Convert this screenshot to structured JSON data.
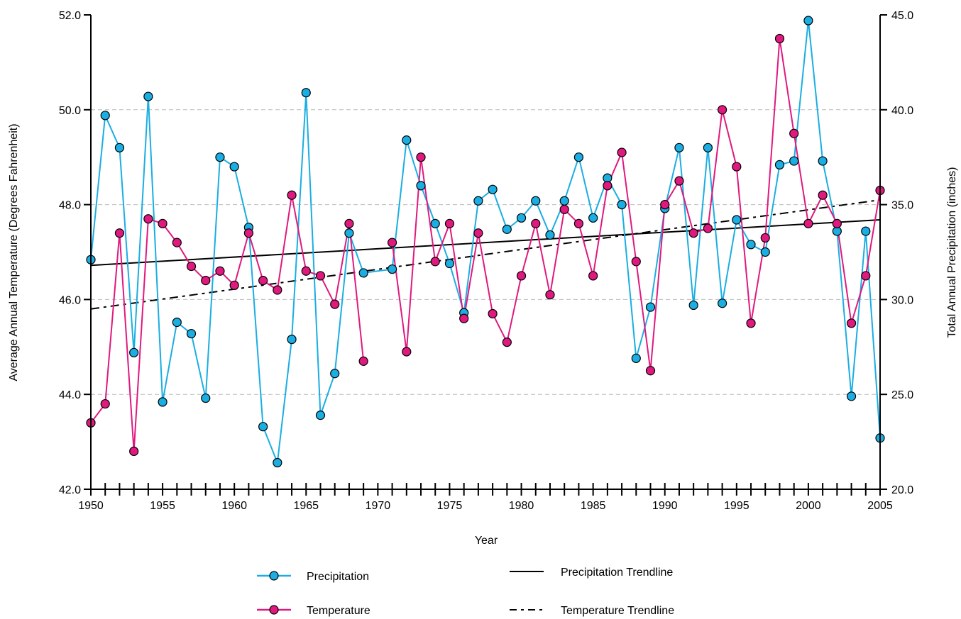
{
  "chart_data": {
    "type": "line",
    "xlabel": "Year",
    "y_left_label": "Average Annual Temperature (Degrees Fahrenheit)",
    "y_right_label": "Total Annual Precipitation (inches)",
    "xlim": [
      1950,
      2005
    ],
    "y_left_lim": [
      42.0,
      52.0
    ],
    "y_right_lim": [
      20.0,
      45.0
    ],
    "x_ticks": [
      1950,
      1955,
      1960,
      1965,
      1970,
      1975,
      1980,
      1985,
      1990,
      1995,
      2000,
      2005
    ],
    "x_tick_labels": [
      "1950",
      "1955",
      "1960",
      "1965",
      "1970",
      "1975",
      "1980",
      "1985",
      "1990",
      "1995",
      "2000",
      "2005"
    ],
    "y_left_ticks": [
      42,
      44,
      46,
      48,
      50,
      52
    ],
    "y_left_tick_labels": [
      "42.0",
      "44.0",
      "46.0",
      "48.0",
      "50.0",
      "52.0"
    ],
    "y_right_ticks": [
      20,
      25,
      30,
      35,
      40,
      45
    ],
    "y_right_tick_labels": [
      "20.0",
      "25.0",
      "30.0",
      "35.0",
      "40.0",
      "45.0"
    ],
    "grid": "horizontal dashed",
    "legend_position": "bottom",
    "colors": {
      "precipitation": "#1aaee2",
      "temperature": "#e0197f",
      "trend": "#000000",
      "grid": "#bbbbbb"
    },
    "series": [
      {
        "name": "Precipitation",
        "axis": "right",
        "x": [
          1950,
          1951,
          1952,
          1953,
          1954,
          1955,
          1956,
          1957,
          1958,
          1959,
          1960,
          1961,
          1962,
          1963,
          1964,
          1965,
          1966,
          1967,
          1968,
          1969,
          1971,
          1972,
          1973,
          1974,
          1975,
          1976,
          1977,
          1978,
          1979,
          1980,
          1981,
          1982,
          1983,
          1984,
          1985,
          1986,
          1987,
          1988,
          1989,
          1990,
          1991,
          1992,
          1993,
          1994,
          1995,
          1996,
          1997,
          1998,
          1999,
          2000,
          2001,
          2002,
          2003,
          2004,
          2005
        ],
        "values": [
          32.1,
          39.7,
          38.0,
          27.2,
          40.7,
          24.6,
          28.8,
          28.2,
          24.8,
          37.5,
          37.0,
          33.8,
          23.3,
          21.4,
          27.9,
          40.9,
          23.9,
          26.1,
          33.5,
          31.4,
          31.6,
          38.4,
          36.0,
          34.0,
          31.9,
          29.3,
          35.2,
          35.8,
          33.7,
          34.3,
          35.2,
          33.4,
          35.2,
          37.5,
          34.3,
          36.4,
          35.0,
          26.9,
          29.6,
          34.8,
          38.0,
          29.7,
          38.0,
          29.8,
          34.2,
          32.9,
          32.5,
          37.1,
          37.3,
          44.7,
          37.3,
          33.6,
          24.9,
          33.6,
          22.7
        ]
      },
      {
        "name": "Temperature",
        "axis": "left",
        "segments": [
          {
            "x": [
              1950,
              1951,
              1952,
              1953,
              1954,
              1955,
              1956,
              1957,
              1958,
              1959,
              1960,
              1961,
              1962,
              1963,
              1964,
              1965,
              1966,
              1967,
              1968,
              1969
            ],
            "values": [
              43.4,
              43.8,
              47.4,
              42.8,
              47.7,
              47.6,
              47.2,
              46.7,
              46.4,
              46.6,
              46.3,
              47.4,
              46.4,
              46.2,
              48.2,
              46.6,
              46.5,
              45.9,
              47.6,
              44.7
            ]
          },
          {
            "x": [
              1971,
              1972,
              1973,
              1974,
              1975,
              1976,
              1977,
              1978,
              1979,
              1980,
              1981,
              1982,
              1983,
              1984,
              1985,
              1986,
              1987,
              1988,
              1989,
              1990,
              1991,
              1992,
              1993,
              1994,
              1995,
              1996,
              1997,
              1998,
              1999,
              2000,
              2001,
              2002,
              2003,
              2004,
              2005
            ],
            "values": [
              47.2,
              44.9,
              49.0,
              46.8,
              47.6,
              45.6,
              47.4,
              45.7,
              45.1,
              46.5,
              47.6,
              46.1,
              47.9,
              47.6,
              46.5,
              48.4,
              49.1,
              46.8,
              44.5,
              48.0,
              48.5,
              47.4,
              47.5,
              50.0,
              48.8,
              45.5,
              47.3,
              51.5,
              49.5,
              47.6,
              48.2,
              47.6,
              45.5,
              46.5,
              48.3
            ]
          }
        ]
      },
      {
        "name": "Precipitation Trendline",
        "axis": "right",
        "x": [
          1950,
          2005
        ],
        "values": [
          31.8,
          34.2
        ]
      },
      {
        "name": "Temperature Trendline",
        "axis": "left",
        "x": [
          1950,
          2005
        ],
        "values": [
          45.8,
          48.1
        ]
      }
    ]
  }
}
